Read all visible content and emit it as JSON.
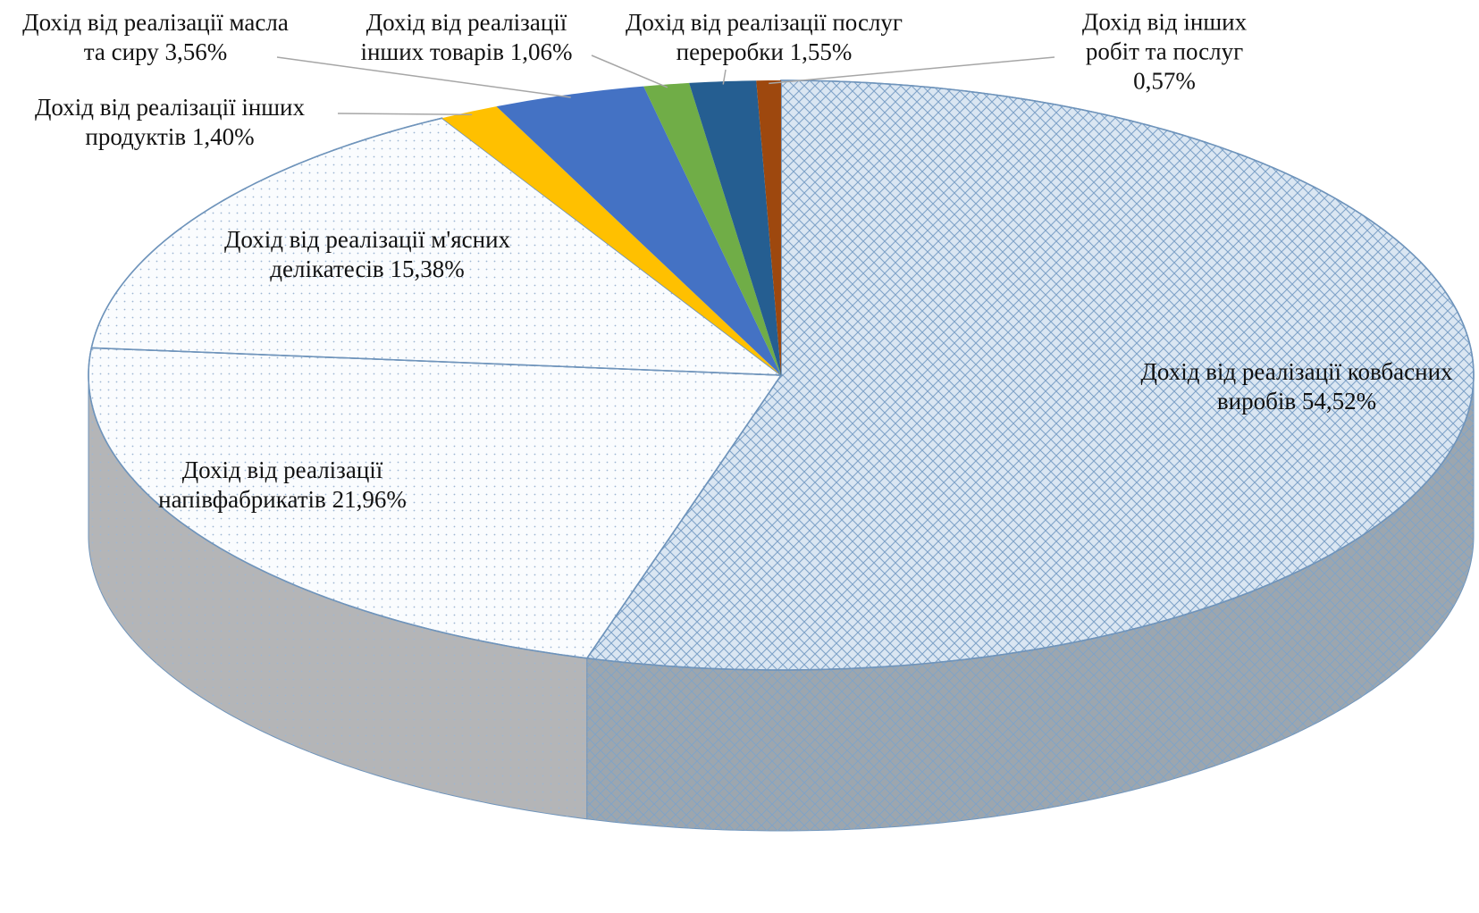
{
  "chart_data": {
    "type": "pie3d",
    "categories": [
      "Дохід від реалізації ковбасних виробів",
      "Дохід від реалізації напівфабрикатів",
      "Дохід від реалізації м'ясних делікатесів",
      "Дохід від реалізації інших продуктів",
      "Дохід від реалізації масла та сиру",
      "Дохід від реалізації інших товарів",
      "Дохід від реалізації послуг переробки",
      "Дохід від інших робіт та послуг"
    ],
    "values": [
      54.52,
      21.96,
      15.38,
      1.4,
      3.56,
      1.06,
      1.55,
      0.57
    ],
    "value_labels": [
      "54,52%",
      "21,96%",
      "15,38%",
      "1,40%",
      "3,56%",
      "1,06%",
      "1,55%",
      "0,57%"
    ],
    "colors": [
      "#dae6f2",
      "#fafcfe",
      "#fafcfe",
      "#ffc000",
      "#4472c4",
      "#70ad47",
      "#255e91",
      "#9e480e"
    ],
    "patterns": [
      "crosshatch",
      "dots",
      "dots",
      "none",
      "none",
      "none",
      "none",
      "none"
    ]
  }
}
